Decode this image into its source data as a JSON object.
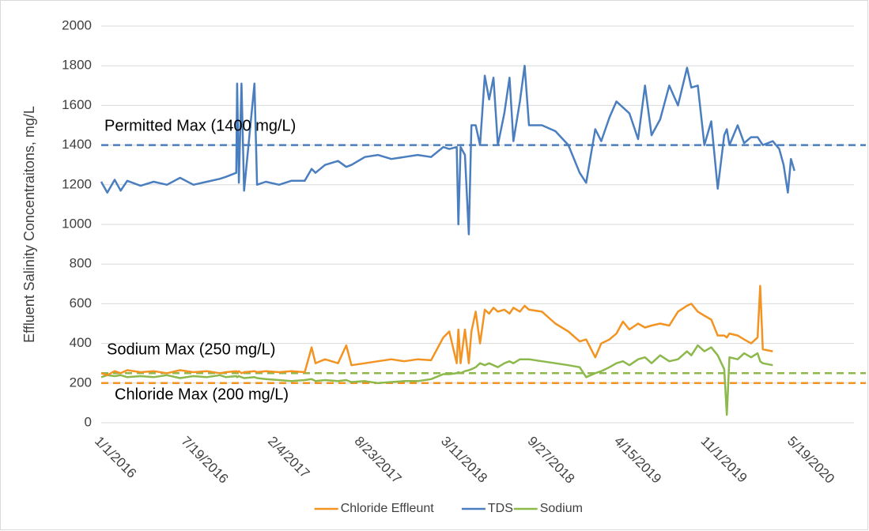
{
  "chart_data": {
    "type": "line",
    "y_label": "Effluent Salinity Concentraitons, mg/L",
    "x": [
      "1/1/2016",
      "1/15/2016",
      "2/1/2016",
      "2/15/2016",
      "3/1/2016",
      "4/1/2016",
      "5/1/2016",
      "6/1/2016",
      "7/1/2016",
      "8/1/2016",
      "9/1/2016",
      "10/1/2016",
      "10/15/2016",
      "11/8/2016",
      "11/10/2016",
      "11/14/2016",
      "11/20/2016",
      "11/26/2016",
      "12/20/2016",
      "12/26/2016",
      "1/15/2017",
      "2/15/2017",
      "3/15/2017",
      "4/15/2017",
      "5/1/2017",
      "5/10/2017",
      "6/1/2017",
      "7/1/2017",
      "7/20/2017",
      "8/1/2017",
      "9/1/2017",
      "10/1/2017",
      "11/1/2017",
      "12/1/2017",
      "1/1/2018",
      "2/1/2018",
      "3/1/2018",
      "3/15/2018",
      "4/1/2018",
      "4/5/2018",
      "4/10/2018",
      "4/20/2018",
      "4/29/2018",
      "5/5/2018",
      "5/15/2018",
      "5/25/2018",
      "6/5/2018",
      "6/15/2018",
      "6/25/2018",
      "7/5/2018",
      "7/20/2018",
      "8/1/2018",
      "8/10/2018",
      "8/25/2018",
      "9/5/2018",
      "9/15/2018",
      "10/15/2018",
      "11/15/2018",
      "12/15/2018",
      "1/10/2019",
      "1/25/2019",
      "2/15/2019",
      "3/1/2019",
      "3/20/2019",
      "4/5/2019",
      "4/20/2019",
      "5/5/2019",
      "5/25/2019",
      "6/10/2019",
      "6/25/2019",
      "7/15/2019",
      "8/5/2019",
      "8/25/2019",
      "9/15/2019",
      "9/25/2019",
      "10/10/2019",
      "10/25/2019",
      "11/10/2019",
      "11/25/2019",
      "12/10/2019",
      "12/16/2019",
      "12/22/2019",
      "1/10/2020",
      "1/25/2020",
      "2/10/2020",
      "2/25/2020",
      "3/2/2020",
      "3/8/2020",
      "3/31/2020",
      "4/15/2020",
      "4/25/2020",
      "5/5/2020",
      "5/12/2020",
      "5/20/2020"
    ],
    "series": [
      {
        "name": "Chloride Effleunt",
        "color": "#f39322",
        "values": [
          250,
          240,
          260,
          250,
          265,
          255,
          260,
          250,
          265,
          255,
          260,
          250,
          255,
          260,
          255,
          260,
          250,
          255,
          260,
          255,
          260,
          255,
          260,
          255,
          380,
          300,
          320,
          300,
          390,
          290,
          300,
          310,
          320,
          310,
          320,
          315,
          430,
          460,
          300,
          470,
          300,
          470,
          300,
          460,
          560,
          400,
          570,
          550,
          580,
          560,
          570,
          550,
          580,
          560,
          590,
          570,
          560,
          500,
          460,
          410,
          420,
          330,
          400,
          420,
          450,
          510,
          470,
          500,
          480,
          490,
          500,
          490,
          560,
          590,
          600,
          560,
          540,
          520,
          440,
          440,
          430,
          450,
          440,
          420,
          400,
          430,
          690,
          370,
          360,
          null,
          null,
          null,
          null,
          null
        ]
      },
      {
        "name": "TDS",
        "color": "#4a7ebf",
        "values": [
          1215,
          1160,
          1225,
          1170,
          1220,
          1195,
          1215,
          1200,
          1235,
          1200,
          1215,
          1230,
          1240,
          1260,
          1710,
          1210,
          1710,
          1170,
          1710,
          1200,
          1215,
          1200,
          1220,
          1220,
          1280,
          1260,
          1300,
          1320,
          1290,
          1300,
          1340,
          1350,
          1330,
          1340,
          1350,
          1340,
          1390,
          1380,
          1390,
          1000,
          1390,
          1350,
          950,
          1500,
          1500,
          1400,
          1750,
          1630,
          1740,
          1400,
          1560,
          1740,
          1420,
          1620,
          1800,
          1500,
          1500,
          1470,
          1400,
          1260,
          1210,
          1480,
          1420,
          1540,
          1620,
          1590,
          1560,
          1430,
          1700,
          1450,
          1530,
          1700,
          1600,
          1790,
          1690,
          1700,
          1400,
          1520,
          1180,
          1450,
          1480,
          1400,
          1500,
          1410,
          1440,
          1440,
          1420,
          1400,
          1420,
          1380,
          1300,
          1160,
          1330,
          1270
        ]
      },
      {
        "name": "Sodium",
        "color": "#8cb84c",
        "values": [
          230,
          240,
          235,
          240,
          230,
          235,
          230,
          240,
          225,
          235,
          230,
          240,
          230,
          235,
          230,
          235,
          230,
          225,
          230,
          225,
          220,
          215,
          210,
          215,
          220,
          210,
          215,
          210,
          215,
          205,
          210,
          200,
          205,
          210,
          210,
          220,
          245,
          245,
          250,
          255,
          250,
          260,
          265,
          270,
          280,
          300,
          290,
          300,
          290,
          280,
          300,
          310,
          300,
          320,
          320,
          320,
          310,
          300,
          290,
          280,
          230,
          250,
          260,
          280,
          300,
          310,
          290,
          320,
          330,
          300,
          340,
          310,
          320,
          360,
          340,
          390,
          360,
          380,
          340,
          270,
          40,
          330,
          320,
          350,
          330,
          350,
          310,
          300,
          290,
          null,
          null,
          null,
          null,
          null
        ]
      }
    ],
    "xlim": [
      "1/1/2016",
      "11/1/2020"
    ],
    "xticks": [
      "1/1/2016",
      "7/19/2016",
      "2/4/2017",
      "8/23/2017",
      "3/11/2018",
      "9/27/2018",
      "4/15/2019",
      "11/1/2019",
      "5/19/2020"
    ],
    "ylim": [
      0,
      2000
    ],
    "yticks": [
      0,
      200,
      400,
      600,
      800,
      1000,
      1200,
      1400,
      1600,
      1800,
      2000
    ],
    "grid": true,
    "legend": "bottom",
    "reference_lines": [
      {
        "label": "Permitted Max (1400 mg/L)",
        "value": 1400,
        "color": "#4a7ebf"
      },
      {
        "label": "Sodium Max (250 mg/L)",
        "value": 250,
        "color": "#8cb84c"
      },
      {
        "label": "Chloride Max (200 mg/L)",
        "value": 200,
        "color": "#f39322"
      }
    ]
  }
}
